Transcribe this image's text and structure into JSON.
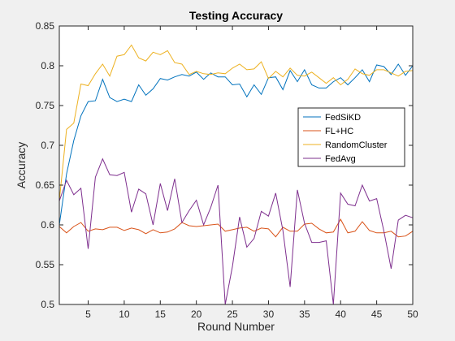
{
  "chart_data": {
    "type": "line",
    "title": "Testing Accuracy",
    "xlabel": "Round Number",
    "ylabel": "Accuracy",
    "xlim": [
      1,
      50
    ],
    "ylim": [
      0.5,
      0.85
    ],
    "xticks": [
      5,
      10,
      15,
      20,
      25,
      30,
      35,
      40,
      45,
      50
    ],
    "yticks": [
      0.5,
      0.55,
      0.6,
      0.65,
      0.7,
      0.75,
      0.8,
      0.85
    ],
    "grid": false,
    "legend_position": "right, middle",
    "x": [
      1,
      2,
      3,
      4,
      5,
      6,
      7,
      8,
      9,
      10,
      11,
      12,
      13,
      14,
      15,
      16,
      17,
      18,
      19,
      20,
      21,
      22,
      23,
      24,
      25,
      26,
      27,
      28,
      29,
      30,
      31,
      32,
      33,
      34,
      35,
      36,
      37,
      38,
      39,
      40,
      41,
      42,
      43,
      44,
      45,
      46,
      47,
      48,
      49,
      50
    ],
    "series": [
      {
        "name": "FedSiKD",
        "color": "#0072BD",
        "values": [
          0.6,
          0.664,
          0.706,
          0.737,
          0.755,
          0.756,
          0.783,
          0.76,
          0.755,
          0.758,
          0.755,
          0.776,
          0.763,
          0.771,
          0.784,
          0.782,
          0.786,
          0.789,
          0.787,
          0.792,
          0.783,
          0.791,
          0.786,
          0.786,
          0.776,
          0.777,
          0.761,
          0.776,
          0.764,
          0.785,
          0.786,
          0.77,
          0.794,
          0.78,
          0.795,
          0.776,
          0.772,
          0.772,
          0.78,
          0.785,
          0.776,
          0.785,
          0.795,
          0.78,
          0.801,
          0.799,
          0.789,
          0.802,
          0.788,
          0.8
        ]
      },
      {
        "name": "FL+HC",
        "color": "#D95319",
        "values": [
          0.598,
          0.59,
          0.598,
          0.603,
          0.592,
          0.595,
          0.594,
          0.597,
          0.597,
          0.593,
          0.596,
          0.594,
          0.589,
          0.594,
          0.59,
          0.591,
          0.595,
          0.603,
          0.599,
          0.598,
          0.599,
          0.6,
          0.601,
          0.592,
          0.594,
          0.596,
          0.597,
          0.592,
          0.596,
          0.595,
          0.585,
          0.597,
          0.592,
          0.592,
          0.601,
          0.602,
          0.595,
          0.59,
          0.591,
          0.607,
          0.59,
          0.592,
          0.604,
          0.593,
          0.59,
          0.59,
          0.592,
          0.585,
          0.586,
          0.592
        ]
      },
      {
        "name": "RandomCluster",
        "color": "#EDB120",
        "values": [
          0.63,
          0.72,
          0.728,
          0.777,
          0.775,
          0.79,
          0.802,
          0.787,
          0.812,
          0.814,
          0.826,
          0.81,
          0.806,
          0.817,
          0.814,
          0.819,
          0.804,
          0.802,
          0.789,
          0.793,
          0.79,
          0.789,
          0.791,
          0.79,
          0.797,
          0.802,
          0.795,
          0.796,
          0.805,
          0.784,
          0.793,
          0.786,
          0.797,
          0.788,
          0.787,
          0.792,
          0.785,
          0.778,
          0.785,
          0.776,
          0.783,
          0.796,
          0.79,
          0.788,
          0.795,
          0.795,
          0.791,
          0.787,
          0.793,
          0.794
        ]
      },
      {
        "name": "FedAvg",
        "color": "#7E2F8E",
        "values": [
          0.63,
          0.656,
          0.638,
          0.646,
          0.57,
          0.66,
          0.683,
          0.663,
          0.662,
          0.666,
          0.616,
          0.645,
          0.639,
          0.6,
          0.652,
          0.618,
          0.658,
          0.603,
          0.618,
          0.631,
          0.6,
          0.622,
          0.65,
          0.5,
          0.548,
          0.61,
          0.572,
          0.583,
          0.617,
          0.611,
          0.64,
          0.593,
          0.522,
          0.644,
          0.602,
          0.578,
          0.578,
          0.58,
          0.5,
          0.64,
          0.626,
          0.624,
          0.65,
          0.63,
          0.633,
          0.592,
          0.545,
          0.606,
          0.612,
          0.609
        ]
      }
    ]
  }
}
